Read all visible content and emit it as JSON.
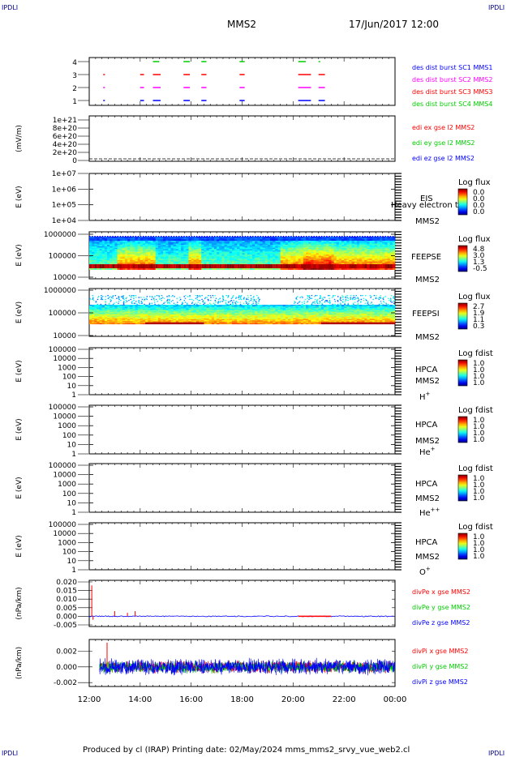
{
  "header": {
    "corner_label": "IPDLI",
    "title": "MMS2",
    "datetime": "17/Jun/2017 12:00"
  },
  "footer": {
    "text": "Produced by cl (IRAP)   Printing date: 02/May/2024   mms_mms2_srvy_vue_web2.cl"
  },
  "colors": {
    "blue": "#0000ff",
    "magenta": "#ff00ff",
    "red": "#ff0000",
    "green": "#00cc00",
    "dark_blue": "#000099"
  },
  "chart_data": [
    {
      "type": "timeline",
      "panel": "burst",
      "ylim": [
        0.5,
        4.5
      ],
      "yticks": [
        "4",
        "3",
        "2",
        "1"
      ],
      "series": [
        {
          "name": "des dist burst SC1 MMS1",
          "level": 1,
          "color": "#0000ff",
          "intervals": [
            [
              12.55,
              12.6
            ],
            [
              14.0,
              14.15
            ],
            [
              14.5,
              14.8
            ],
            [
              15.7,
              15.95
            ],
            [
              16.4,
              16.6
            ],
            [
              17.9,
              18.1
            ],
            [
              20.2,
              20.7
            ],
            [
              21.0,
              21.25
            ]
          ]
        },
        {
          "name": "des dist burst SC2 MMS2",
          "level": 2,
          "color": "#ff00ff",
          "intervals": [
            [
              12.55,
              12.6
            ],
            [
              14.0,
              14.15
            ],
            [
              14.5,
              14.8
            ],
            [
              15.7,
              15.95
            ],
            [
              16.4,
              16.6
            ],
            [
              17.9,
              18.1
            ],
            [
              20.2,
              20.7
            ],
            [
              21.0,
              21.25
            ]
          ]
        },
        {
          "name": "des dist burst SC3 MMS3",
          "level": 3,
          "color": "#ff0000",
          "intervals": [
            [
              12.55,
              12.6
            ],
            [
              14.0,
              14.15
            ],
            [
              14.5,
              14.8
            ],
            [
              15.7,
              15.95
            ],
            [
              16.4,
              16.6
            ],
            [
              17.9,
              18.1
            ],
            [
              20.2,
              20.7
            ],
            [
              21.0,
              21.25
            ]
          ]
        },
        {
          "name": "des dist burst SC4 MMS4",
          "level": 4,
          "color": "#00cc00",
          "intervals": [
            [
              14.5,
              14.75
            ],
            [
              15.7,
              15.95
            ],
            [
              16.4,
              16.6
            ],
            [
              17.9,
              18.1
            ],
            [
              20.2,
              20.5
            ],
            [
              21.0,
              21.05
            ]
          ]
        }
      ]
    },
    {
      "type": "line",
      "panel": "edi",
      "ylabel": "(mV/m)",
      "yticks": [
        "1e+21",
        "8e+20",
        "6e+20",
        "4e+20",
        "2e+20",
        "0"
      ],
      "series": [
        {
          "name": "edi ex gse l2 MMS2",
          "color": "#ff0000"
        },
        {
          "name": "edi ey gse l2 MMS2",
          "color": "#00cc00"
        },
        {
          "name": "edi ez gse l2 MMS2",
          "color": "#0000ff"
        }
      ],
      "baseline": 0
    },
    {
      "type": "heatmap",
      "panel": "eis",
      "ylabel": "E (eV)",
      "yticks": [
        "1e+07",
        "1e+06",
        "1e+05",
        "1e+04"
      ],
      "instrument": "EIS",
      "overlay_text": "Heavy electron tof",
      "spacecraft": "MMS2",
      "colorbar_label": "Log flux",
      "colorbar_ticks": [
        "0.0",
        "0.0",
        "0.0",
        "0.0"
      ],
      "data": "empty"
    },
    {
      "type": "heatmap",
      "panel": "feepse",
      "ylabel": "E (eV)",
      "yticks": [
        "1000000",
        "100000",
        "10000"
      ],
      "instrument": "FEEPSE",
      "spacecraft": "MMS2",
      "colorbar_label": "Log flux",
      "colorbar_ticks": [
        "4.8",
        "3.0",
        "1.3",
        "-0.5"
      ]
    },
    {
      "type": "heatmap",
      "panel": "feepsi",
      "ylabel": "E (eV)",
      "yticks": [
        "1000000",
        "100000",
        "10000"
      ],
      "instrument": "FEEPSI",
      "spacecraft": "MMS2",
      "colorbar_label": "Log flux",
      "colorbar_ticks": [
        "2.7",
        "1.9",
        "1.1",
        "0.3"
      ]
    },
    {
      "type": "heatmap",
      "panel": "hpca_h",
      "ylabel": "E (eV)",
      "yticks": [
        "100000",
        "10000",
        "1000",
        "100",
        "10",
        "1"
      ],
      "instrument": "HPCA",
      "spacecraft": "MMS2",
      "species": "H",
      "charge": "+",
      "colorbar_label": "Log fdist",
      "colorbar_ticks": [
        "1.0",
        "1.0",
        "1.0",
        "1.0"
      ],
      "data": "empty"
    },
    {
      "type": "heatmap",
      "panel": "hpca_he1",
      "ylabel": "E (eV)",
      "yticks": [
        "100000",
        "10000",
        "1000",
        "100",
        "10",
        "1"
      ],
      "instrument": "HPCA",
      "spacecraft": "MMS2",
      "species": "He",
      "charge": "+",
      "colorbar_label": "Log fdist",
      "colorbar_ticks": [
        "1.0",
        "1.0",
        "1.0",
        "1.0"
      ],
      "data": "empty"
    },
    {
      "type": "heatmap",
      "panel": "hpca_he2",
      "ylabel": "E (eV)",
      "yticks": [
        "100000",
        "10000",
        "1000",
        "100",
        "10",
        "1"
      ],
      "instrument": "HPCA",
      "spacecraft": "MMS2",
      "species": "He",
      "charge": "++",
      "colorbar_label": "Log fdist",
      "colorbar_ticks": [
        "1.0",
        "1.0",
        "1.0",
        "1.0"
      ],
      "data": "empty"
    },
    {
      "type": "heatmap",
      "panel": "hpca_o",
      "ylabel": "E (eV)",
      "yticks": [
        "100000",
        "10000",
        "1000",
        "100",
        "10",
        "1"
      ],
      "instrument": "HPCA",
      "spacecraft": "MMS2",
      "species": "O",
      "charge": "+",
      "colorbar_label": "Log fdist",
      "colorbar_ticks": [
        "1.0",
        "1.0",
        "1.0",
        "1.0"
      ],
      "data": "empty"
    },
    {
      "type": "line",
      "panel": "divpe",
      "ylabel": "(nPa/km)",
      "ylim": [
        -0.005,
        0.02
      ],
      "yticks": [
        "0.020",
        "0.015",
        "0.010",
        "0.005",
        "0.000",
        "-0.005"
      ],
      "series": [
        {
          "name": "divPe x gse MMS2",
          "color": "#ff0000"
        },
        {
          "name": "divPe y gse MMS2",
          "color": "#00cc00"
        },
        {
          "name": "divPe z gse MMS2",
          "color": "#0000ff"
        }
      ],
      "spikes": [
        [
          12.1,
          0.018
        ],
        [
          12.15,
          -0.002
        ],
        [
          13.0,
          0.003
        ],
        [
          13.5,
          0.002
        ],
        [
          13.8,
          0.003
        ]
      ]
    },
    {
      "type": "line",
      "panel": "divpi",
      "ylabel": "(nPa/km)",
      "ylim": [
        -0.0025,
        0.0035
      ],
      "yticks": [
        "0.002",
        "0.000",
        "-0.002"
      ],
      "series": [
        {
          "name": "divPi x gse MMS2",
          "color": "#ff0000"
        },
        {
          "name": "divPi y gse MMS2",
          "color": "#00cc00"
        },
        {
          "name": "divPi z gse MMS2",
          "color": "#0000ff"
        }
      ]
    }
  ],
  "x_axis": {
    "xlim": [
      12,
      24
    ],
    "ticks": [
      "12:00",
      "14:00",
      "16:00",
      "18:00",
      "20:00",
      "22:00",
      "00:00"
    ]
  }
}
